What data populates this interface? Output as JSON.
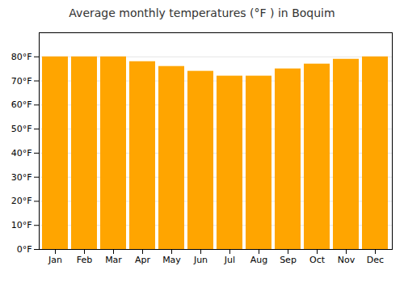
{
  "chart_data": {
    "type": "bar",
    "title": "Average monthly temperatures (°F ) in Boquim",
    "categories": [
      "Jan",
      "Feb",
      "Mar",
      "Apr",
      "May",
      "Jun",
      "Jul",
      "Aug",
      "Sep",
      "Oct",
      "Nov",
      "Dec"
    ],
    "values": [
      80,
      80,
      80,
      78,
      76,
      74,
      72,
      72,
      75,
      77,
      79,
      80
    ],
    "color": "#FFA500",
    "ylim": [
      0,
      90
    ],
    "yticks": [
      {
        "value": 0,
        "label": "0°F"
      },
      {
        "value": 10,
        "label": "10°F"
      },
      {
        "value": 20,
        "label": "20°F"
      },
      {
        "value": 30,
        "label": "30°F"
      },
      {
        "value": 40,
        "label": "40°F"
      },
      {
        "value": 50,
        "label": "50°F"
      },
      {
        "value": 60,
        "label": "60°F"
      },
      {
        "value": 70,
        "label": "70°F"
      },
      {
        "value": 80,
        "label": "80°F"
      }
    ],
    "grid": true
  }
}
